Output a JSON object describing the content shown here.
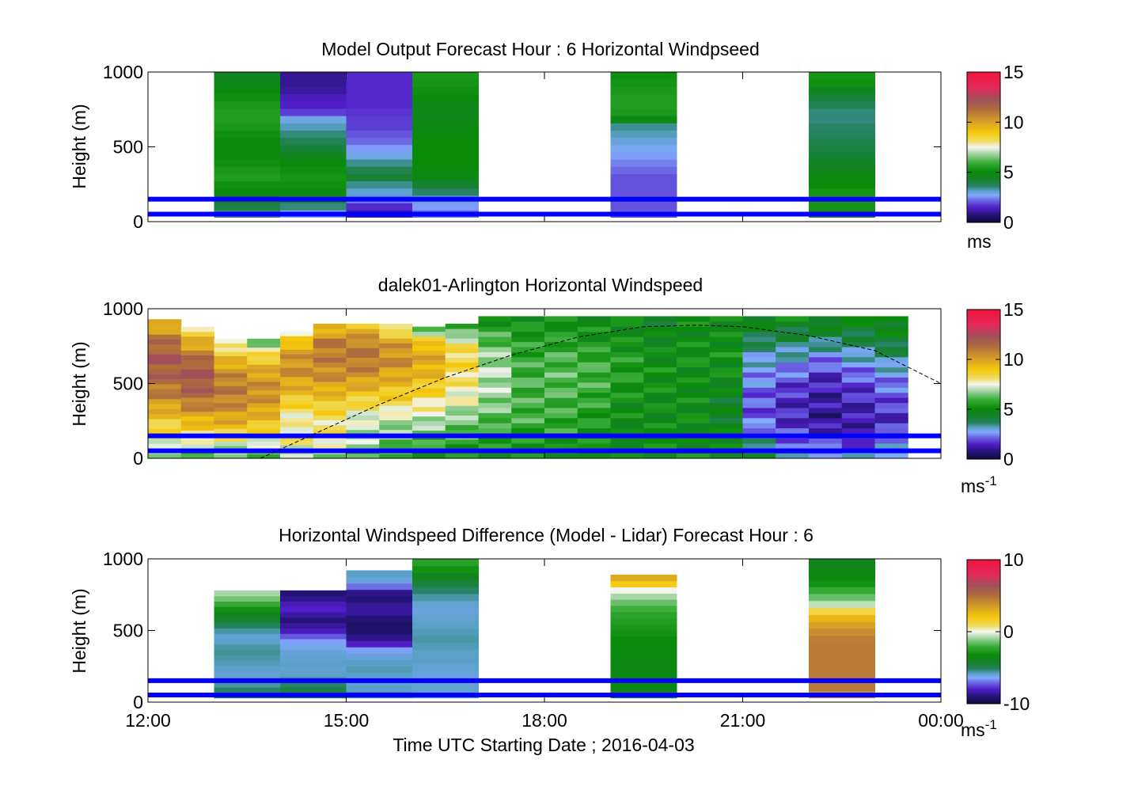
{
  "figure": {
    "xlabel": "Time UTC  Starting Date ; 2016-04-03",
    "x_ticks": [
      "12:00",
      "15:00",
      "18:00",
      "21:00",
      "00:00"
    ]
  },
  "chart_data": [
    {
      "type": "heatmap",
      "title": "Model Output   Forecast Hour : 6 Horizontal Windpseed",
      "ylabel": "Height (m)",
      "xlim_hours": [
        12,
        24
      ],
      "ylim": [
        0,
        1000
      ],
      "y_ticks": [
        "0",
        "500",
        "1000"
      ],
      "colorbar": {
        "min": 0,
        "max": 15,
        "ticks": [
          "0",
          "5",
          "10",
          "15"
        ],
        "unit": "ms",
        "unit_sup": ""
      },
      "columns": [
        {
          "t_start": 13,
          "t_end": 14,
          "z_top": 1000,
          "values": [
            3.5,
            4,
            4.6,
            5,
            5.2,
            5.5,
            5.4,
            5.2,
            5,
            5,
            5.1,
            5.2,
            5.4,
            5.5,
            5.5,
            5.4,
            5.2,
            5,
            4.8,
            4.5
          ]
        },
        {
          "t_start": 14,
          "t_end": 15,
          "z_top": 1000,
          "values": [
            2.8,
            3.5,
            4.2,
            4.9,
            5.2,
            5.3,
            5.2,
            5,
            4.6,
            4.2,
            3.8,
            3.5,
            3.2,
            2.9,
            1.8,
            1.5,
            1.4,
            1.1,
            1.0,
            1.0
          ]
        },
        {
          "t_start": 15,
          "t_end": 16,
          "z_top": 1000,
          "values": [
            1.2,
            1.6,
            2.4,
            3.1,
            3.4,
            4.2,
            3.9,
            3.4,
            2.9,
            2.6,
            2.2,
            2.0,
            1.8,
            1.8,
            1.7,
            1.6,
            1.6,
            1.6,
            1.6,
            1.6
          ]
        },
        {
          "t_start": 16,
          "t_end": 17,
          "z_top": 1000,
          "values": [
            2.2,
            2.6,
            3.0,
            3.6,
            4.2,
            4.8,
            5.0,
            5.1,
            5.1,
            5.1,
            5.1,
            5.0,
            4.9,
            4.8,
            4.7,
            4.8,
            5.0,
            5.2,
            5.3,
            5.4
          ]
        },
        {
          "t_start": 19,
          "t_end": 20,
          "z_top": 1000,
          "values": [
            2.0,
            2.0,
            2.0,
            2.0,
            2.0,
            2.0,
            2.2,
            2.4,
            2.6,
            2.8,
            3.0,
            3.2,
            3.4,
            4.8,
            5.4,
            5.5,
            5.5,
            5.4,
            5.3,
            5.2
          ]
        },
        {
          "t_start": 22,
          "t_end": 23,
          "z_top": 1000,
          "values": [
            5.2,
            5.3,
            5.4,
            5.3,
            5.1,
            4.9,
            4.6,
            4.4,
            4.2,
            4.0,
            3.9,
            3.7,
            3.6,
            3.5,
            3.5,
            3.8,
            4.1,
            4.6,
            5.2,
            5.3
          ]
        }
      ],
      "reference_lines_m": [
        50,
        150
      ]
    },
    {
      "type": "heatmap",
      "title": "dalek01-Arlington  Horizontal Windspeed",
      "ylabel": "Height (m)",
      "xlim_hours": [
        12,
        24
      ],
      "ylim": [
        0,
        1000
      ],
      "y_ticks": [
        "0",
        "500",
        "1000"
      ],
      "colorbar": {
        "min": 0,
        "max": 15,
        "ticks": [
          "0",
          "5",
          "10",
          "15"
        ],
        "unit": "ms",
        "unit_sup": "-1"
      },
      "profiles": [
        {
          "t": 12.0,
          "z_top": 930,
          "v": [
            6.5,
            7.8,
            9.0,
            10.5,
            11.5,
            12.0,
            11.2,
            9.0
          ]
        },
        {
          "t": 12.5,
          "z_top": 880,
          "v": [
            6.0,
            7.5,
            9.5,
            11.0,
            12.0,
            11.8,
            10.0,
            8.0
          ]
        },
        {
          "t": 13.0,
          "z_top": 800,
          "v": [
            6.0,
            7.5,
            9.5,
            10.5,
            11.0,
            10.5,
            9.0,
            7.0
          ]
        },
        {
          "t": 13.5,
          "z_top": 800,
          "v": [
            6.0,
            7.5,
            9.0,
            10.0,
            10.5,
            10.0,
            8.5,
            6.0
          ]
        },
        {
          "t": 14.0,
          "z_top": 850,
          "v": [
            6.5,
            8.0,
            7.5,
            8.5,
            9.8,
            10.5,
            10.0,
            7.5
          ]
        },
        {
          "t": 14.5,
          "z_top": 900,
          "v": [
            6.5,
            8.0,
            8.0,
            9.0,
            10.2,
            10.8,
            11.0,
            9.0
          ]
        },
        {
          "t": 15.0,
          "z_top": 900,
          "v": [
            6.0,
            7.0,
            7.2,
            8.5,
            10.0,
            11.0,
            10.8,
            9.0
          ]
        },
        {
          "t": 15.5,
          "z_top": 900,
          "v": [
            5.5,
            6.5,
            7.0,
            8.5,
            9.5,
            10.5,
            10.2,
            7.0
          ]
        },
        {
          "t": 16.0,
          "z_top": 880,
          "v": [
            5.0,
            6.0,
            7.0,
            8.0,
            9.0,
            9.8,
            9.5,
            6.0
          ]
        },
        {
          "t": 16.5,
          "z_top": 900,
          "v": [
            5.0,
            6.0,
            6.5,
            7.5,
            8.0,
            8.5,
            8.0,
            5.0
          ]
        },
        {
          "t": 17.0,
          "z_top": 950,
          "v": [
            5.0,
            5.5,
            6.2,
            6.8,
            7.0,
            6.8,
            6.0,
            5.0
          ]
        },
        {
          "t": 17.5,
          "z_top": 950,
          "v": [
            5.0,
            5.5,
            6.0,
            6.0,
            6.0,
            5.8,
            5.5,
            5.0
          ]
        },
        {
          "t": 18.0,
          "z_top": 950,
          "v": [
            5.0,
            5.5,
            5.8,
            6.0,
            6.2,
            6.0,
            5.5,
            5.0
          ]
        },
        {
          "t": 18.5,
          "z_top": 950,
          "v": [
            5.0,
            5.2,
            5.5,
            5.8,
            6.0,
            5.8,
            5.2,
            5.0
          ]
        },
        {
          "t": 19.0,
          "z_top": 950,
          "v": [
            5.0,
            5.0,
            5.0,
            5.2,
            5.5,
            5.5,
            5.0,
            5.0
          ]
        },
        {
          "t": 19.5,
          "z_top": 950,
          "v": [
            5.0,
            5.0,
            5.0,
            5.0,
            5.2,
            5.0,
            4.8,
            4.5
          ]
        },
        {
          "t": 20.0,
          "z_top": 950,
          "v": [
            5.0,
            5.0,
            5.0,
            5.0,
            5.0,
            5.2,
            5.0,
            5.0
          ]
        },
        {
          "t": 20.5,
          "z_top": 950,
          "v": [
            5.0,
            4.8,
            4.5,
            4.5,
            5.0,
            5.2,
            5.0,
            5.0
          ]
        },
        {
          "t": 21.0,
          "z_top": 950,
          "v": [
            4.5,
            3.0,
            2.0,
            2.0,
            2.5,
            3.0,
            4.0,
            5.0
          ]
        },
        {
          "t": 21.5,
          "z_top": 950,
          "v": [
            3.5,
            2.0,
            1.5,
            1.5,
            2.0,
            3.0,
            4.0,
            5.0
          ]
        },
        {
          "t": 22.0,
          "z_top": 950,
          "v": [
            3.0,
            1.5,
            1.0,
            1.2,
            1.5,
            2.5,
            4.0,
            5.0
          ]
        },
        {
          "t": 22.5,
          "z_top": 950,
          "v": [
            3.0,
            1.5,
            1.2,
            1.5,
            2.0,
            3.0,
            4.0,
            5.0
          ]
        },
        {
          "t": 23.0,
          "z_top": 950,
          "v": [
            3.5,
            2.0,
            1.5,
            2.0,
            2.5,
            3.5,
            4.5,
            5.0
          ]
        }
      ],
      "boundary_layer_curve": {
        "t": [
          13.7,
          14.5,
          15.5,
          16.5,
          17.5,
          18.5,
          19.5,
          20.3,
          21.0,
          22.0,
          23.0,
          24.0
        ],
        "z": [
          0,
          160,
          360,
          540,
          690,
          810,
          880,
          890,
          880,
          820,
          720,
          500
        ]
      },
      "reference_lines_m": [
        50,
        150
      ]
    },
    {
      "type": "heatmap",
      "title": "Horizontal Windspeed Difference (Model - Lidar) Forecast Hour : 6",
      "ylabel": "Height (m)",
      "xlim_hours": [
        12,
        24
      ],
      "ylim": [
        0,
        1000
      ],
      "y_ticks": [
        "0",
        "500",
        "1000"
      ],
      "colorbar": {
        "min": -10,
        "max": 10,
        "ticks": [
          "-10",
          "0",
          "10"
        ],
        "unit": "ms",
        "unit_sup": "-1"
      },
      "columns": [
        {
          "t_start": 13,
          "t_end": 14,
          "z_top": 780,
          "values": [
            -4.5,
            -5.2,
            -5.6,
            -5.8,
            -5.9,
            -5.8,
            -5.7,
            -5.6,
            -5.5,
            -5.6,
            -5.8,
            -5.9,
            -5.6,
            -5.0,
            -4.4,
            -3.8,
            -3.0,
            -2.2,
            -1.4,
            -0.8
          ]
        },
        {
          "t_start": 14,
          "t_end": 15,
          "z_top": 780,
          "values": [
            -3.8,
            -4.6,
            -5.2,
            -5.6,
            -5.8,
            -5.9,
            -5.8,
            -5.9,
            -6.0,
            -6.2,
            -6.5,
            -7.3,
            -8.2,
            -8.6,
            -9.0,
            -8.5,
            -8.0,
            -8.2,
            -8.8,
            -9.0
          ]
        },
        {
          "t_start": 15,
          "t_end": 16,
          "z_top": 920,
          "values": [
            -5.5,
            -5.8,
            -5.9,
            -5.8,
            -5.7,
            -5.8,
            -6.0,
            -6.5,
            -8.0,
            -8.8,
            -9.2,
            -9.3,
            -9.0,
            -8.5,
            -8.6,
            -9.0,
            -8.8,
            -7.0,
            -6.0,
            -5.8
          ]
        },
        {
          "t_start": 16,
          "t_end": 17,
          "z_top": 1000,
          "values": [
            -5.8,
            -5.9,
            -6.0,
            -6.0,
            -5.9,
            -5.8,
            -5.8,
            -5.7,
            -5.6,
            -5.7,
            -5.8,
            -5.9,
            -6.0,
            -5.9,
            -5.6,
            -5.2,
            -4.5,
            -3.8,
            -3.0,
            -2.5
          ]
        },
        {
          "t_start": 19,
          "t_end": 20,
          "z_top": 890,
          "values": [
            -4.0,
            -3.5,
            -3.2,
            -3.3,
            -3.5,
            -3.6,
            -3.5,
            -3.4,
            -3.3,
            -3.2,
            -3.0,
            -2.8,
            -2.6,
            -2.4,
            -2.0,
            -1.5,
            -0.8,
            0.0,
            1.8,
            3.0
          ]
        },
        {
          "t_start": 22,
          "t_end": 23,
          "z_top": 1000,
          "values": [
            3.8,
            4.6,
            4.6,
            4.6,
            4.6,
            4.6,
            4.6,
            4.6,
            4.5,
            4.0,
            3.4,
            2.6,
            1.2,
            -0.6,
            -1.5,
            -2.2,
            -3.0,
            -3.4,
            -3.6,
            -3.8
          ]
        }
      ],
      "reference_lines_m": [
        50,
        150
      ]
    }
  ]
}
